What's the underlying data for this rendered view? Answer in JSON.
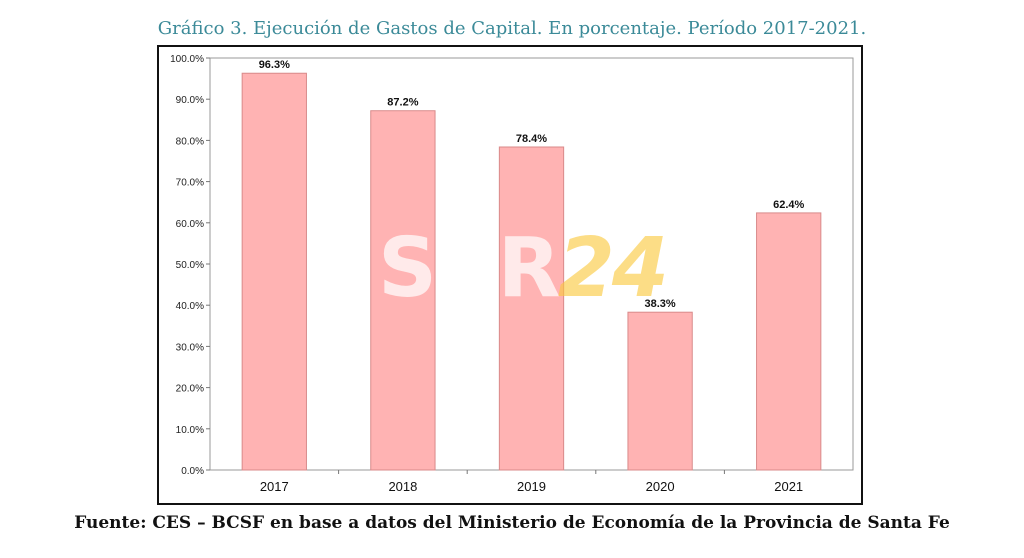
{
  "title": "Gráfico 3. Ejecución de Gastos de Capital. En porcentaje. Período 2017-2021.",
  "source": "Fuente: CES – BCSF en base a datos del Ministerio de Economía de la Provincia de Santa Fe",
  "watermark": {
    "part1": "SUR",
    "part2": "24"
  },
  "colors": {
    "bar_fill": "#ffb3b3",
    "bar_stroke": "#d98a8a",
    "title": "#3b8a98",
    "plot_border": "#999999"
  },
  "chart_data": {
    "type": "bar",
    "categories": [
      "2017",
      "2018",
      "2019",
      "2020",
      "2021"
    ],
    "values": [
      96.3,
      87.2,
      78.4,
      38.3,
      62.4
    ],
    "data_labels": [
      "96.3%",
      "87.2%",
      "78.4%",
      "38.3%",
      "62.4%"
    ],
    "title": "Gráfico 3. Ejecución de Gastos de Capital. En porcentaje. Período 2017-2021.",
    "xlabel": "",
    "ylabel": "",
    "ylim": [
      0,
      100
    ],
    "yticks": [
      0,
      10,
      20,
      30,
      40,
      50,
      60,
      70,
      80,
      90,
      100
    ],
    "ytick_labels": [
      "0.0%",
      "10.0%",
      "20.0%",
      "30.0%",
      "40.0%",
      "50.0%",
      "60.0%",
      "70.0%",
      "80.0%",
      "90.0%",
      "100.0%"
    ],
    "grid": false,
    "legend": "none"
  }
}
